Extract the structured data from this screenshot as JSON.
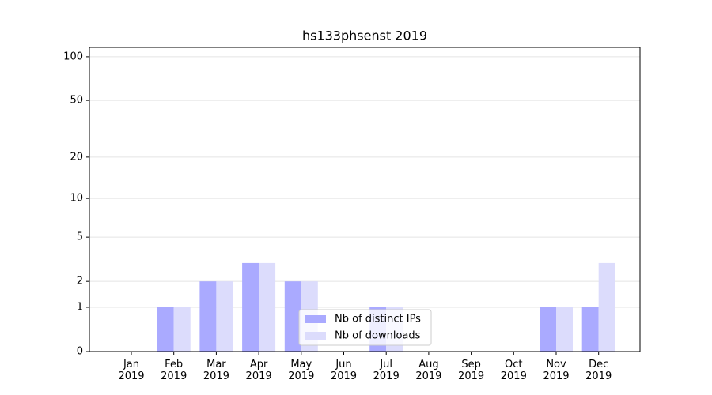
{
  "chart_data": {
    "type": "bar",
    "title": "hs133phsenst 2019",
    "categories": [
      "Jan\n2019",
      "Feb\n2019",
      "Mar\n2019",
      "Apr\n2019",
      "May\n2019",
      "Jun\n2019",
      "Jul\n2019",
      "Aug\n2019",
      "Sep\n2019",
      "Oct\n2019",
      "Nov\n2019",
      "Dec\n2019"
    ],
    "series": [
      {
        "name": "Nb of distinct IPs",
        "color": "#aaaaff",
        "values": [
          0,
          1,
          2,
          3,
          2,
          0,
          1,
          0,
          0,
          0,
          1,
          1
        ]
      },
      {
        "name": "Nb of downloads",
        "color": "#dcdcfc",
        "values": [
          0,
          1,
          2,
          3,
          2,
          0,
          1,
          0,
          0,
          0,
          1,
          3
        ]
      }
    ],
    "yscale": "log1p",
    "ylim": [
      0,
      116
    ],
    "yticks": [
      0,
      1,
      2,
      5,
      10,
      20,
      50,
      100
    ],
    "grid": true,
    "legend": "lower center"
  }
}
